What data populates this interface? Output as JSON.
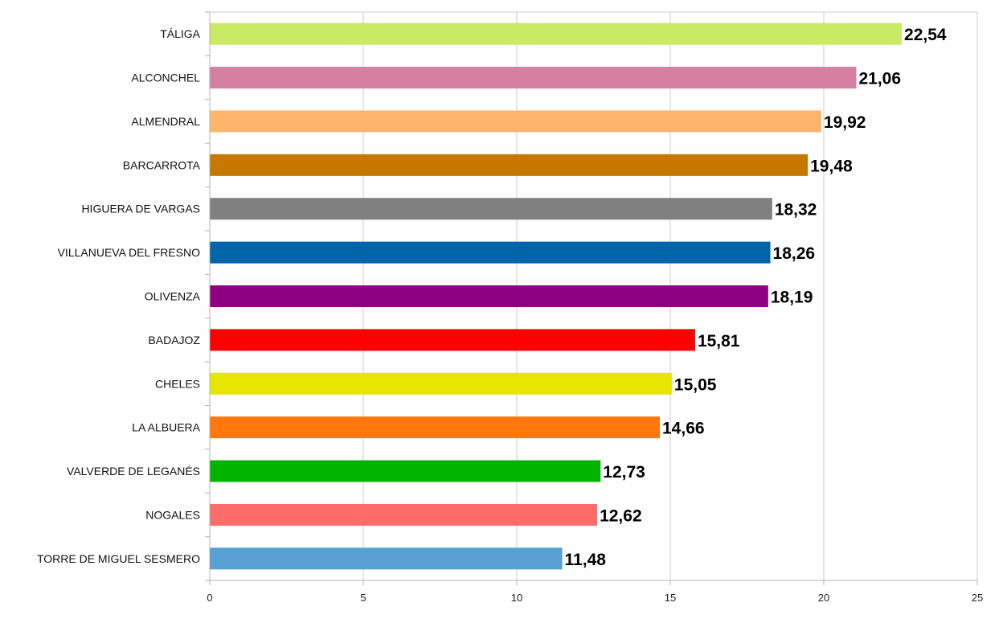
{
  "chart_data": {
    "type": "bar",
    "orientation": "horizontal",
    "categories": [
      "TÁLIGA",
      "ALCONCHEL",
      "ALMENDRAL",
      "BARCARROTA",
      "HIGUERA DE VARGAS",
      "VILLANUEVA DEL FRESNO",
      "OLIVENZA",
      "BADAJOZ",
      "CHELES",
      "LA ALBUERA",
      "VALVERDE DE LEGANÉS",
      "NOGALES",
      "TORRE DE MIGUEL SESMERO"
    ],
    "values": [
      22.54,
      21.06,
      19.92,
      19.48,
      18.32,
      18.26,
      18.19,
      15.81,
      15.05,
      14.66,
      12.73,
      12.62,
      11.48
    ],
    "value_labels": [
      "22,54",
      "21,06",
      "19,92",
      "19,48",
      "18,32",
      "18,26",
      "18,19",
      "15,81",
      "15,05",
      "14,66",
      "12,73",
      "12,62",
      "11,48"
    ],
    "colors": [
      "#c9ea63",
      "#d5809f",
      "#ffb66c",
      "#c67700",
      "#808080",
      "#0066a8",
      "#8e0082",
      "#ff0000",
      "#e6e600",
      "#ff770d",
      "#00b400",
      "#ff6c6c",
      "#57a0d2"
    ],
    "xlim": [
      0,
      25
    ],
    "xticks": [
      "0",
      "5",
      "10",
      "15",
      "20",
      "25"
    ],
    "title": "",
    "xlabel": "",
    "ylabel": "",
    "grid": "vertical",
    "legend": "none"
  }
}
